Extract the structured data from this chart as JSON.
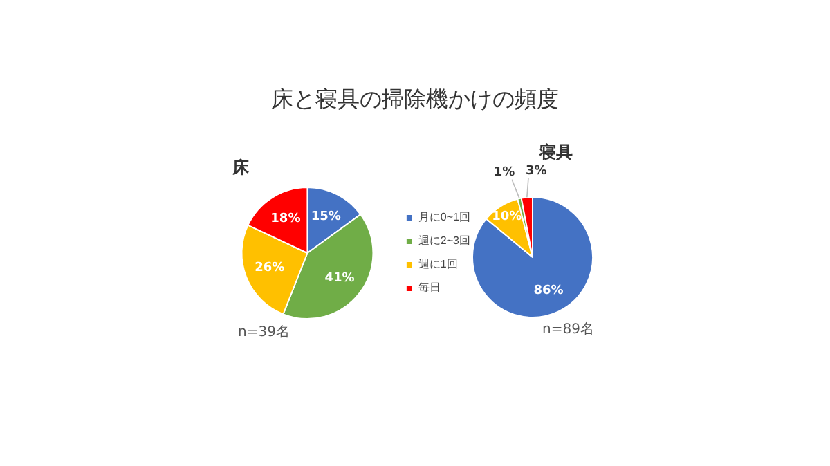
{
  "chart_data": [
    {
      "type": "pie",
      "title": "床と寝具の掃除機かけの頻度",
      "subtitle": "床",
      "categories": [
        "月に0~1回",
        "週に2~3回",
        "週に1回",
        "毎日"
      ],
      "values": [
        15,
        41,
        26,
        18
      ],
      "colors": [
        "#4472c4",
        "#70ad47",
        "#ffc000",
        "#ff0000"
      ],
      "value_labels": [
        "15%",
        "41%",
        "26%",
        "18%"
      ],
      "legend": "right",
      "annotations": [
        "n=39名"
      ]
    },
    {
      "type": "pie",
      "title": "寝具",
      "values": [
        86,
        10,
        1,
        3
      ],
      "colors": [
        "#4472c4",
        "#ffc000",
        "#70ad47",
        "#ff0000"
      ],
      "value_labels": [
        "86%",
        "10%",
        "1%",
        "3%"
      ],
      "annotations": [
        "n=89名"
      ]
    }
  ]
}
